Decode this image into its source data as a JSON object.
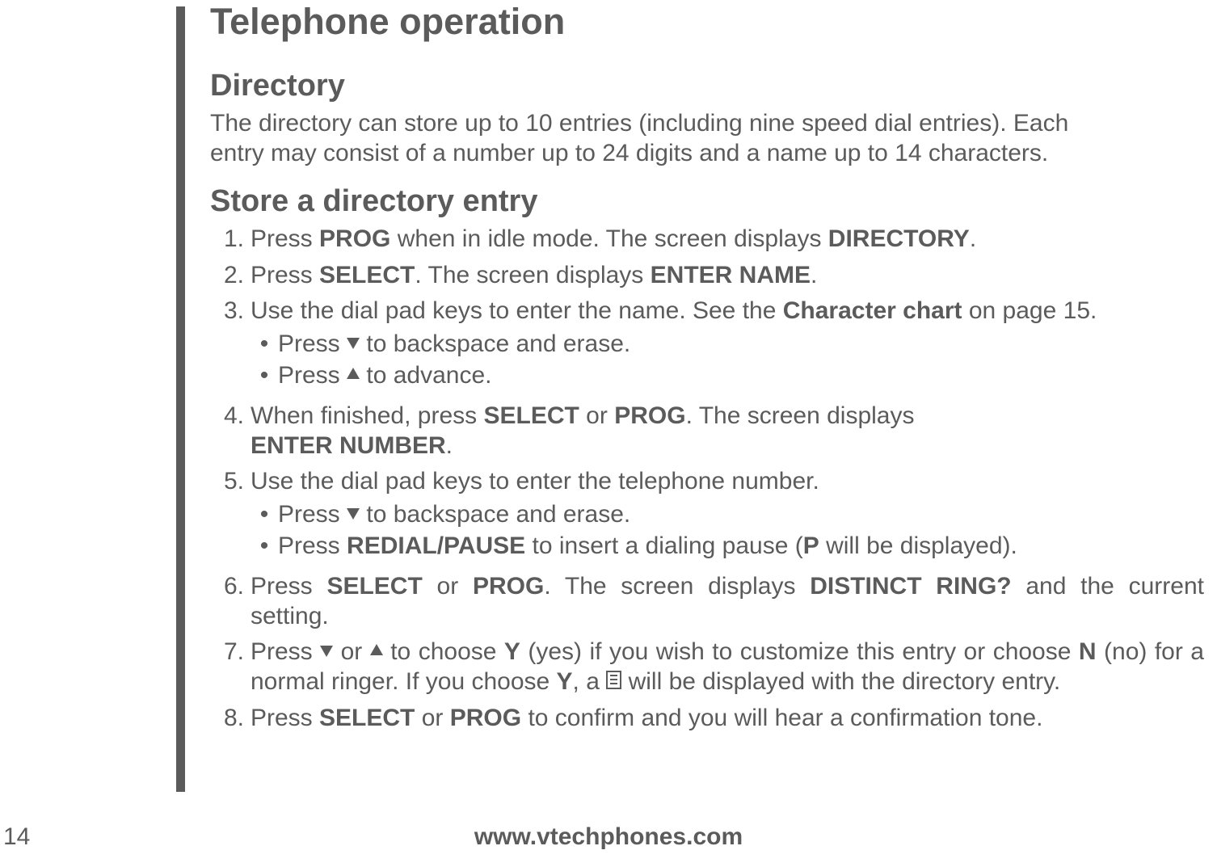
{
  "page_number": "14",
  "footer_url": "www.vtechphones.com",
  "chapter_title": "Telephone operation",
  "section_title": "Directory",
  "intro_line1": "The directory can store up to 10 entries (including nine speed dial entries). Each",
  "intro_line2": "entry may consist of a number up to 24 digits and a name up to 14 characters.",
  "subsection_title": "Store a directory entry",
  "steps": {
    "s1": {
      "num": "1.",
      "t1": "Press ",
      "b1": "PROG",
      "t2": " when in idle mode. The screen displays ",
      "b2": "DIRECTORY",
      "t3": "."
    },
    "s2": {
      "num": "2.",
      "t1": "Press ",
      "b1": "SELECT",
      "t2": ". The screen displays ",
      "b2": "ENTER NAME",
      "t3": "."
    },
    "s3": {
      "num": "3.",
      "t1": "Use the dial pad keys to enter the name. See the ",
      "b1": "Character chart",
      "t2": " on page 15.",
      "bullets": {
        "a": {
          "t1": "Press ",
          "t2": " to backspace and erase."
        },
        "b": {
          "t1": "Press ",
          "t2": " to advance."
        }
      }
    },
    "s4": {
      "num": "4.",
      "t1": "When finished, press ",
      "b1": "SELECT",
      "t2": " or ",
      "b2": "PROG",
      "t3": ". The screen displays",
      "line2": "ENTER NUMBER",
      "t4": "."
    },
    "s5": {
      "num": "5.",
      "t1": "Use the dial pad keys to enter the telephone number.",
      "bullets": {
        "a": {
          "t1": "Press ",
          "t2": " to backspace and erase."
        },
        "b": {
          "t1": "Press ",
          "b1": "REDIAL/PAUSE",
          "t2": " to insert a dialing pause (",
          "b2": "P",
          "t3": " will be displayed)."
        }
      }
    },
    "s6": {
      "num": "6.",
      "t1": "Press ",
      "b1": "SELECT",
      "t2": " or ",
      "b2": "PROG",
      "t3": ". The screen displays ",
      "b3": "DISTINCT RING?",
      "t4": " and the current setting."
    },
    "s7": {
      "num": "7.",
      "t1": "Press ",
      "t2": " or ",
      "t3": " to choose ",
      "b1": "Y",
      "t4": " (yes) if you wish to customize this entry or choose ",
      "b2": "N",
      "t5": " (no) for a normal ringer. If you choose ",
      "b3": "Y",
      "t6": ", a ",
      "t7": " will be displayed with the directory entry."
    },
    "s8": {
      "num": "8.",
      "t1": "Press ",
      "b1": "SELECT",
      "t2": " or ",
      "b2": "PROG",
      "t3": " to confirm and you will hear a confirmation tone."
    }
  }
}
